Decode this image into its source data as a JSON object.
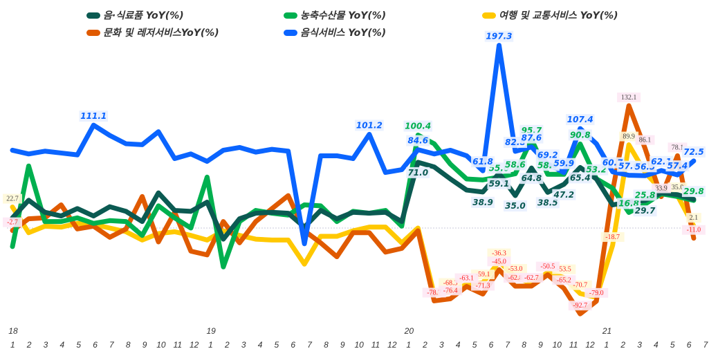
{
  "chart_data": {
    "type": "line",
    "title": "",
    "xlabel": "",
    "ylabel": "",
    "ylim": [
      -140,
      240
    ],
    "grid": "zero line only (dotted)",
    "legend_placement": "top",
    "year_labels": [
      {
        "label": "18",
        "index": 0
      },
      {
        "label": "19",
        "index": 12
      },
      {
        "label": "20",
        "index": 24
      },
      {
        "label": "21",
        "index": 36
      }
    ],
    "x": [
      "1",
      "2",
      "3",
      "4",
      "5",
      "6",
      "7",
      "8",
      "9",
      "10",
      "11",
      "12",
      "1",
      "2",
      "3",
      "4",
      "5",
      "6",
      "7",
      "8",
      "9",
      "10",
      "11",
      "12",
      "1",
      "2",
      "3",
      "4",
      "5",
      "6",
      "7",
      "8",
      "9",
      "10",
      "11",
      "12",
      "1",
      "2",
      "3",
      "4",
      "5",
      "6",
      "7"
    ],
    "series": [
      {
        "name": "음·식료품 YoY(%)",
        "color": "#0b5a52",
        "labeled": [
          25,
          29,
          30,
          31,
          32,
          33,
          34,
          35,
          39
        ],
        "values": [
          11,
          30,
          17,
          13,
          21,
          13,
          23,
          18,
          7,
          38,
          19,
          18,
          28,
          -12,
          10,
          16,
          17,
          16,
          1,
          19,
          10,
          17,
          16,
          17,
          7,
          71.0,
          66,
          53,
          41,
          38.9,
          59.1,
          35.0,
          64.8,
          38.5,
          47.2,
          65.4,
          53,
          25,
          28,
          29.7,
          38,
          36,
          31
        ]
      },
      {
        "name": "농축수산물 YoY(%)",
        "color": "#00b04f",
        "labeled": [
          25,
          30,
          31,
          32,
          33,
          35,
          36,
          38,
          39,
          42
        ],
        "values": [
          -20,
          67,
          7,
          7,
          11,
          5,
          8,
          7,
          -8,
          24,
          11,
          0,
          55,
          -42,
          7,
          19,
          16,
          14,
          25,
          24,
          7,
          18,
          16,
          19,
          2,
          100.4,
          91,
          69,
          53,
          52,
          55.0,
          58.6,
          95.7,
          58.0,
          58,
          90.8,
          53.2,
          43,
          16.8,
          25.8,
          37,
          34,
          29.8
        ]
      },
      {
        "name": "여행 및 교통서비스 YoY(%)",
        "color": "#ffc800",
        "labeled": [
          0,
          27,
          29,
          30,
          31,
          34,
          35,
          37,
          38,
          41,
          42
        ],
        "values": [
          22.7,
          -5,
          2,
          1,
          5,
          4,
          0,
          -4,
          -13,
          -6,
          -4,
          -8,
          -13,
          -3,
          -8,
          -12,
          -13,
          -13,
          -39,
          -9,
          -9,
          -3,
          1,
          1,
          -16,
          0,
          -72,
          -68.3,
          -61,
          -59.1,
          -36.3,
          -53.0,
          -60,
          -48,
          -53.5,
          -70.7,
          -75,
          -18.7,
          89.9,
          60,
          41,
          35.0,
          2.1
        ]
      },
      {
        "name": "문화 및 레저서비스YoY(%)",
        "color": "#e05a00",
        "labeled": [
          0,
          26,
          27,
          28,
          29,
          30,
          31,
          32,
          33,
          34,
          35,
          36,
          38,
          39,
          40,
          41,
          42
        ],
        "values": [
          -2.7,
          10,
          11,
          25,
          -1,
          2,
          -10,
          -1,
          34,
          -15,
          17,
          -25,
          -29,
          7,
          -16,
          7,
          21,
          35,
          -3,
          -16,
          -31,
          -5,
          -5,
          -26,
          -22,
          -3,
          -78.7,
          -76.4,
          -63.1,
          -71.3,
          -45.0,
          -62.8,
          -62.7,
          -50.5,
          -65.2,
          -92.7,
          -79.0,
          40,
          132.1,
          86.1,
          33.9,
          78.1,
          -11.0
        ]
      },
      {
        "name": "음식서비스 YoY(%)",
        "color": "#0a64ff",
        "labeled": [
          5,
          22,
          25,
          29,
          30,
          31,
          32,
          33,
          34,
          35,
          37,
          38,
          39,
          40,
          41,
          42
        ],
        "values": [
          84,
          80,
          83,
          81,
          79,
          111.1,
          100,
          91,
          90,
          104,
          75,
          80,
          72,
          84,
          87,
          82,
          85,
          83,
          -17,
          78,
          78,
          75,
          101.2,
          60,
          63,
          84.6,
          80,
          84,
          78,
          61.8,
          197.3,
          82.8,
          87.6,
          69.2,
          59.9,
          107.4,
          91,
          60.7,
          57.0,
          56.5,
          62.1,
          57.4,
          72.5
        ]
      }
    ]
  }
}
